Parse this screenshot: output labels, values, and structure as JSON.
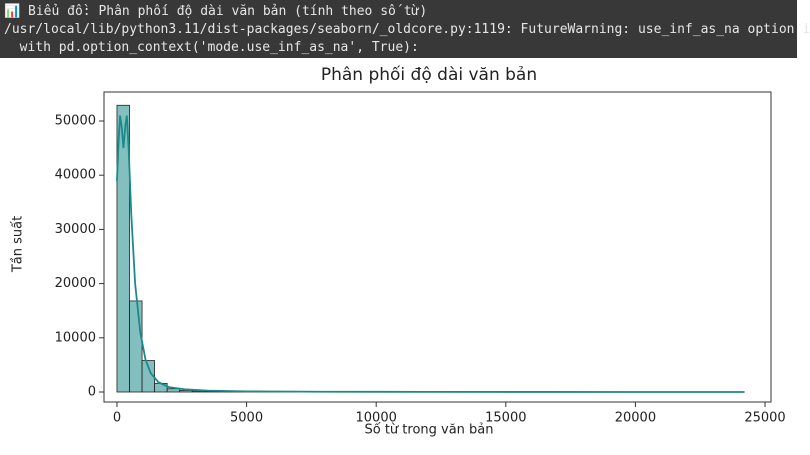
{
  "console": [
    "📊 Biểu đồ: Phân phối độ dài văn bản (tính theo số từ)",
    "/usr/local/lib/python3.11/dist-packages/seaborn/_oldcore.py:1119: FutureWarning: use_inf_as_na option i",
    "  with pd.option_context('mode.use_inf_as_na', True):"
  ],
  "chart_data": {
    "type": "histogram",
    "title": "Phân phối độ dài văn bản",
    "x_label": "Số từ trong văn bản",
    "y_label": "Tần suất",
    "bins": [
      0,
      484,
      968,
      1452,
      1936,
      2420,
      2904,
      3388,
      3872,
      4356,
      4840,
      5324,
      5808,
      6292,
      6776,
      7260,
      7744,
      8228,
      8712,
      9196,
      9680,
      10164,
      10648,
      11132,
      11616,
      12100,
      12584,
      13068,
      13552,
      14036,
      14520,
      15004,
      15488,
      15972,
      16456,
      16940,
      17424,
      17908,
      18392,
      18876,
      19360,
      19844,
      20328,
      20812,
      21296,
      21780,
      22264,
      22748,
      23232,
      23716,
      24200
    ],
    "counts": [
      52900,
      16800,
      5800,
      1600,
      600,
      300,
      180,
      120,
      80,
      50,
      40,
      30,
      20,
      15,
      10,
      8,
      6,
      5,
      4,
      3,
      2,
      2,
      1,
      1,
      1,
      1,
      1,
      1,
      1,
      0,
      0,
      0,
      0,
      0,
      0,
      0,
      0,
      0,
      0,
      0,
      0,
      0,
      0,
      0,
      0,
      0,
      0,
      0,
      0,
      1
    ],
    "color": "#5aa9a9",
    "edge_color": "#222222",
    "kde": {
      "color": "#1a8a8a",
      "x": [
        0,
        60,
        120,
        180,
        250,
        320,
        380,
        450,
        550,
        700,
        900,
        1100,
        1300,
        1600,
        2000,
        2600,
        3500,
        5000,
        8000,
        12000,
        16000,
        20000,
        24200
      ],
      "values": [
        39000,
        46000,
        51000,
        49000,
        45000,
        49000,
        51000,
        45000,
        33000,
        20000,
        11000,
        6000,
        3500,
        1800,
        900,
        500,
        250,
        120,
        50,
        20,
        8,
        3,
        1
      ]
    },
    "xlim": [
      -500,
      25230
    ],
    "ylim": [
      -1845,
      55350
    ],
    "xticks": [
      0,
      5000,
      10000,
      15000,
      20000,
      25000
    ],
    "yticks": [
      0,
      10000,
      20000,
      30000,
      40000,
      50000
    ]
  }
}
